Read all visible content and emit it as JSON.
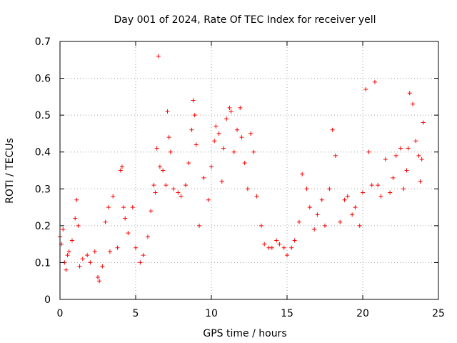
{
  "chart_data": {
    "type": "scatter",
    "title": "Day 001 of 2024, Rate Of TEC Index for receiver yell",
    "xlabel": "GPS time / hours",
    "ylabel": "ROTI / TECUs",
    "xlim": [
      0,
      25
    ],
    "ylim": [
      0,
      0.7
    ],
    "xticks": [
      0,
      5,
      10,
      15,
      20,
      25
    ],
    "yticks": [
      0,
      0.1,
      0.2,
      0.3,
      0.4,
      0.5,
      0.6,
      0.7
    ],
    "xtick_labels": [
      "0",
      "5",
      "10",
      "15",
      "20",
      "25"
    ],
    "ytick_labels": [
      "0",
      "0.1",
      "0.2",
      "0.3",
      "0.4",
      "0.5",
      "0.6",
      "0.7"
    ],
    "grid": true,
    "marker": "+",
    "color": "#ff0000",
    "series": [
      {
        "name": "ROTI",
        "x": [
          0.0,
          0.1,
          0.2,
          0.3,
          0.4,
          0.5,
          0.6,
          0.8,
          1.0,
          1.1,
          1.2,
          1.3,
          1.5,
          1.8,
          2.0,
          2.3,
          2.5,
          2.6,
          2.8,
          3.0,
          3.2,
          3.3,
          3.5,
          3.8,
          4.0,
          4.1,
          4.2,
          4.3,
          4.5,
          4.8,
          5.0,
          5.3,
          5.5,
          5.8,
          6.0,
          6.2,
          6.3,
          6.4,
          6.5,
          6.6,
          6.8,
          7.0,
          7.1,
          7.2,
          7.3,
          7.5,
          7.8,
          8.0,
          8.3,
          8.5,
          8.7,
          8.8,
          8.9,
          9.0,
          9.2,
          9.5,
          9.8,
          10.0,
          10.2,
          10.3,
          10.5,
          10.7,
          10.8,
          11.0,
          11.2,
          11.3,
          11.5,
          11.7,
          11.9,
          12.0,
          12.2,
          12.4,
          12.6,
          12.8,
          13.0,
          13.3,
          13.5,
          13.8,
          14.0,
          14.3,
          14.5,
          14.8,
          15.0,
          15.3,
          15.5,
          15.8,
          16.0,
          16.3,
          16.5,
          16.8,
          17.0,
          17.3,
          17.5,
          17.8,
          18.0,
          18.2,
          18.5,
          18.8,
          19.0,
          19.3,
          19.5,
          19.8,
          20.0,
          20.2,
          20.4,
          20.6,
          20.8,
          21.0,
          21.2,
          21.5,
          21.8,
          22.0,
          22.2,
          22.5,
          22.7,
          22.9,
          23.0,
          23.1,
          23.3,
          23.5,
          23.7,
          23.8,
          23.9,
          24.0
        ],
        "y": [
          0.17,
          0.15,
          0.19,
          0.1,
          0.08,
          0.12,
          0.13,
          0.16,
          0.22,
          0.27,
          0.2,
          0.09,
          0.11,
          0.12,
          0.1,
          0.13,
          0.06,
          0.05,
          0.09,
          0.21,
          0.25,
          0.13,
          0.28,
          0.14,
          0.35,
          0.36,
          0.25,
          0.22,
          0.18,
          0.25,
          0.14,
          0.1,
          0.12,
          0.17,
          0.24,
          0.31,
          0.29,
          0.41,
          0.66,
          0.36,
          0.35,
          0.31,
          0.51,
          0.44,
          0.4,
          0.3,
          0.29,
          0.28,
          0.31,
          0.37,
          0.46,
          0.54,
          0.5,
          0.42,
          0.2,
          0.33,
          0.27,
          0.36,
          0.43,
          0.47,
          0.45,
          0.32,
          0.41,
          0.49,
          0.52,
          0.51,
          0.4,
          0.46,
          0.52,
          0.44,
          0.37,
          0.3,
          0.45,
          0.4,
          0.28,
          0.2,
          0.15,
          0.14,
          0.14,
          0.16,
          0.15,
          0.14,
          0.12,
          0.14,
          0.16,
          0.21,
          0.34,
          0.3,
          0.25,
          0.19,
          0.23,
          0.27,
          0.2,
          0.3,
          0.46,
          0.39,
          0.21,
          0.27,
          0.28,
          0.23,
          0.25,
          0.2,
          0.29,
          0.57,
          0.4,
          0.31,
          0.59,
          0.31,
          0.28,
          0.38,
          0.29,
          0.33,
          0.39,
          0.41,
          0.3,
          0.35,
          0.41,
          0.56,
          0.53,
          0.43,
          0.39,
          0.32,
          0.38,
          0.48
        ]
      }
    ]
  }
}
